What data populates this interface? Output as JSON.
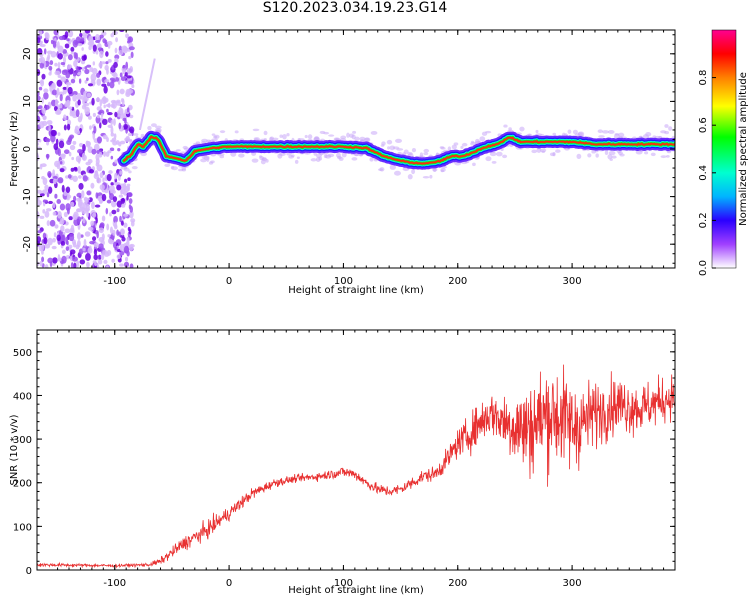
{
  "title": "S120.2023.034.19.23.G14",
  "chart_data": [
    {
      "type": "heatmap",
      "xlabel": "Height of straight line (km)",
      "ylabel": "Frequency (Hz)",
      "xlim": [
        -168,
        390
      ],
      "ylim": [
        -25,
        25
      ],
      "xticks": [
        -100,
        0,
        100,
        200,
        300
      ],
      "yticks": [
        -20,
        -10,
        0,
        10,
        20
      ],
      "colorbar": {
        "label": "Normalized spectral amplitude",
        "ticks": [
          0.0,
          0.2,
          0.4,
          0.6,
          0.8
        ],
        "range": [
          0,
          1
        ]
      },
      "noise_region_x": [
        -168,
        -90
      ],
      "ridge": {
        "x": [
          -92,
          -85,
          -80,
          -75,
          -68,
          -62,
          -55,
          -45,
          -38,
          -30,
          -20,
          -10,
          0,
          20,
          40,
          60,
          80,
          100,
          120,
          135,
          150,
          165,
          175,
          185,
          195,
          205,
          215,
          225,
          235,
          245,
          255,
          265,
          280,
          300,
          320,
          340,
          360,
          390
        ],
        "y": [
          -2.5,
          -1,
          1,
          0.5,
          2.5,
          2,
          -1.5,
          -2,
          -2.5,
          -0.5,
          0,
          0.3,
          0.5,
          0.5,
          0.5,
          0.5,
          0.5,
          0.5,
          0.2,
          -1.5,
          -2.5,
          -3,
          -3,
          -2.5,
          -1.5,
          -1.5,
          -0.5,
          0.5,
          1,
          2.5,
          1.5,
          1.5,
          1.5,
          1.5,
          1,
          1,
          1,
          1
        ]
      }
    },
    {
      "type": "line",
      "xlabel": "Height of straight line (km)",
      "ylabel": "SNR (10 * v/v)",
      "xlim": [
        -168,
        390
      ],
      "ylim": [
        0,
        550
      ],
      "xticks": [
        -100,
        0,
        100,
        200,
        300
      ],
      "yticks": [
        0,
        100,
        200,
        300,
        400,
        500
      ],
      "color": "#e83030",
      "series": [
        {
          "x": [
            -168,
            -100,
            -70,
            -60,
            -40,
            -20,
            0,
            20,
            40,
            60,
            80,
            100,
            110,
            120,
            130,
            140,
            150,
            160,
            170,
            180,
            190,
            200,
            210,
            220,
            230,
            240,
            250,
            260,
            270,
            280,
            290,
            300,
            310,
            320,
            340,
            360,
            390
          ],
          "y": [
            12,
            10,
            12,
            20,
            60,
            90,
            130,
            175,
            200,
            210,
            215,
            225,
            220,
            200,
            185,
            180,
            185,
            200,
            215,
            220,
            250,
            290,
            310,
            340,
            360,
            340,
            330,
            320,
            340,
            360,
            350,
            330,
            340,
            360,
            380,
            370,
            400
          ],
          "spread": [
            5,
            4,
            5,
            10,
            20,
            25,
            20,
            15,
            12,
            10,
            12,
            15,
            15,
            15,
            15,
            15,
            15,
            18,
            18,
            20,
            30,
            40,
            50,
            60,
            60,
            80,
            110,
            130,
            140,
            150,
            140,
            130,
            110,
            90,
            80,
            70,
            60
          ]
        }
      ]
    }
  ]
}
